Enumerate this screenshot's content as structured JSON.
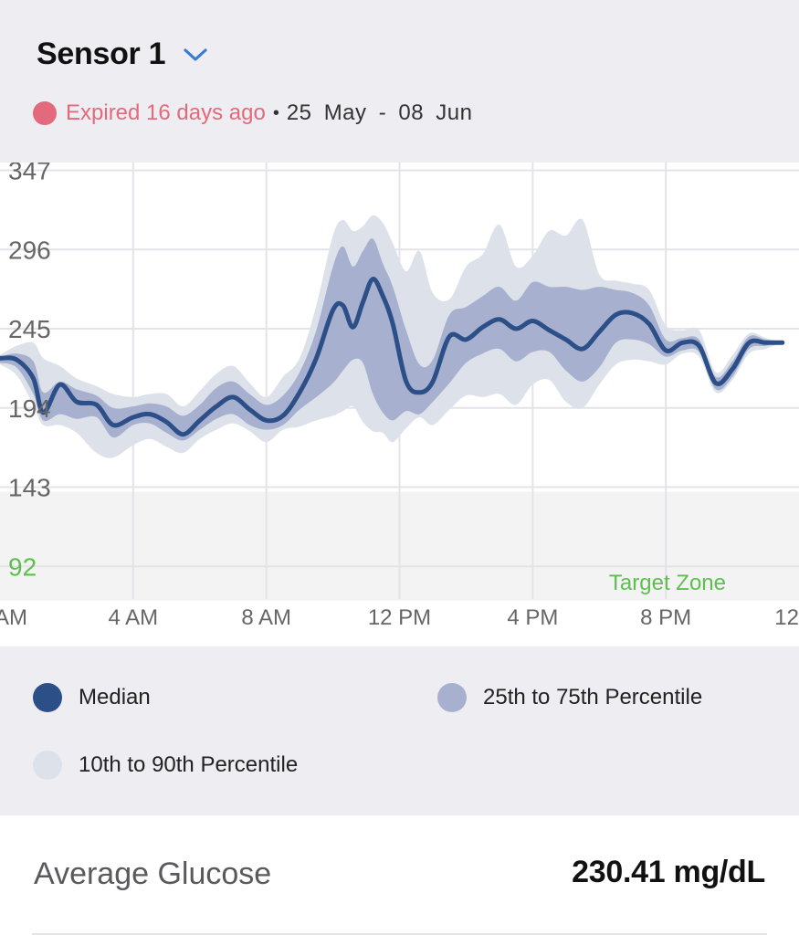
{
  "header": {
    "sensor_name": "Sensor 1",
    "status_text": "Expired 16 days ago",
    "separator": "•",
    "date_range": "25 May - 08 Jun"
  },
  "colors": {
    "median": "#2c4f88",
    "iqr_band": "#a7b1cf",
    "outer_band": "#dde1ea",
    "target_zone": "#f3f3f4",
    "expired": "#e36a7c",
    "target_text": "#5cbf4e",
    "chevron": "#3a7bd5"
  },
  "chart_data": {
    "type": "area",
    "y_ticks": [
      "347",
      "296",
      "245",
      "194",
      "143",
      "92"
    ],
    "x_ticks": [
      "AM",
      "4 AM",
      "8 AM",
      "12 PM",
      "4 PM",
      "8 PM",
      "12"
    ],
    "target_zone_label": "Target Zone",
    "target_zone_range": [
      70,
      140
    ],
    "ylim": [
      71,
      352
    ],
    "xlim": [
      0,
      24
    ],
    "x": [
      0,
      0.5,
      1,
      1.3,
      1.8,
      2.3,
      2.9,
      3.4,
      4,
      4.5,
      5,
      5.5,
      6,
      6.5,
      7,
      7.5,
      8,
      8.5,
      9,
      9.5,
      10,
      10.3,
      10.6,
      10.9,
      11.2,
      11.5,
      11.8,
      12.2,
      12.6,
      13,
      13.5,
      14,
      14.5,
      15,
      15.5,
      16,
      16.5,
      17,
      17.5,
      18,
      18.5,
      19,
      19.5,
      20,
      20.5,
      21,
      21.5,
      22,
      22.5,
      23,
      23.5
    ],
    "series": [
      {
        "name": "Median",
        "values": [
          226,
          225,
          213,
          191,
          209,
          198,
          196,
          183,
          188,
          190,
          185,
          177,
          186,
          195,
          201,
          193,
          186,
          189,
          204,
          226,
          257,
          260,
          246,
          262,
          277,
          266,
          248,
          211,
          204,
          211,
          240,
          238,
          246,
          251,
          245,
          250,
          244,
          238,
          232,
          243,
          254,
          255,
          248,
          231,
          236,
          234,
          210,
          219,
          236,
          236,
          236
        ]
      },
      {
        "name": "25th Percentile",
        "values": [
          223,
          220,
          203,
          186,
          190,
          187,
          188,
          175,
          183,
          184,
          178,
          173,
          180,
          187,
          190,
          183,
          180,
          183,
          193,
          201,
          210,
          218,
          225,
          223,
          203,
          191,
          186,
          192,
          190,
          198,
          210,
          223,
          229,
          232,
          224,
          230,
          230,
          218,
          211,
          220,
          236,
          238,
          235,
          227,
          231,
          230,
          206,
          214,
          232,
          234,
          236
        ]
      },
      {
        "name": "75th Percentile",
        "values": [
          227,
          229,
          224,
          204,
          211,
          206,
          202,
          194,
          195,
          197,
          195,
          189,
          196,
          207,
          211,
          203,
          196,
          202,
          217,
          244,
          285,
          298,
          285,
          295,
          303,
          287,
          272,
          244,
          222,
          225,
          254,
          259,
          266,
          272,
          263,
          275,
          272,
          272,
          270,
          272,
          270,
          268,
          260,
          238,
          239,
          238,
          214,
          224,
          240,
          238,
          236
        ]
      },
      {
        "name": "10th Percentile",
        "values": [
          222,
          215,
          196,
          183,
          183,
          178,
          165,
          162,
          170,
          174,
          169,
          165,
          174,
          180,
          184,
          179,
          172,
          180,
          182,
          186,
          189,
          192,
          195,
          185,
          179,
          178,
          172,
          181,
          188,
          183,
          193,
          202,
          201,
          203,
          196,
          209,
          212,
          198,
          194,
          209,
          222,
          225,
          224,
          222,
          229,
          227,
          204,
          212,
          229,
          232,
          236
        ]
      },
      {
        "name": "90th Percentile",
        "values": [
          228,
          234,
          236,
          226,
          221,
          213,
          208,
          203,
          201,
          203,
          203,
          195,
          205,
          216,
          221,
          210,
          201,
          214,
          226,
          260,
          305,
          315,
          308,
          311,
          318,
          313,
          300,
          282,
          295,
          268,
          264,
          285,
          293,
          312,
          285,
          292,
          308,
          305,
          315,
          280,
          276,
          274,
          270,
          247,
          244,
          244,
          217,
          228,
          242,
          239,
          236
        ]
      }
    ]
  },
  "legend": {
    "median": "Median",
    "iqr": "25th to 75th Percentile",
    "outer": "10th to 90th Percentile"
  },
  "stats": {
    "avg_label": "Average Glucose",
    "avg_value": "230.41 mg/dL"
  }
}
